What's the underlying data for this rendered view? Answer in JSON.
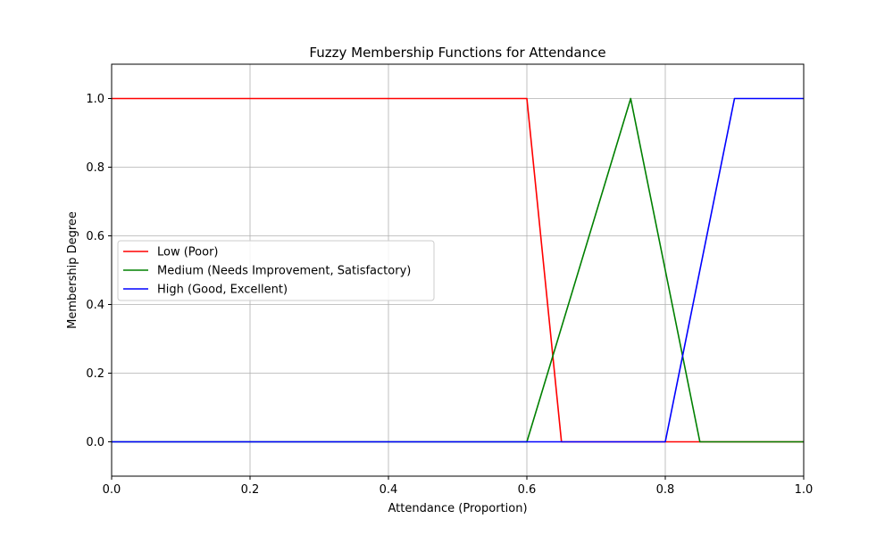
{
  "chart_data": {
    "type": "line",
    "title": "Fuzzy Membership Functions for Attendance",
    "xlabel": "Attendance (Proportion)",
    "ylabel": "Membership Degree",
    "xlim": [
      0.0,
      1.0
    ],
    "ylim": [
      -0.1,
      1.1
    ],
    "x_ticks": [
      "0.0",
      "0.2",
      "0.4",
      "0.6",
      "0.8",
      "1.0"
    ],
    "y_ticks": [
      "0.0",
      "0.2",
      "0.4",
      "0.6",
      "0.8",
      "1.0"
    ],
    "grid": true,
    "legend_position": "center-left",
    "series": [
      {
        "name": "Low (Poor)",
        "color": "#ff0000",
        "points": [
          [
            0.0,
            1.0
          ],
          [
            0.6,
            1.0
          ],
          [
            0.65,
            0.0
          ],
          [
            1.0,
            0.0
          ]
        ]
      },
      {
        "name": "Medium (Needs Improvement, Satisfactory)",
        "color": "#008000",
        "points": [
          [
            0.0,
            0.0
          ],
          [
            0.6,
            0.0
          ],
          [
            0.75,
            1.0
          ],
          [
            0.85,
            0.0
          ],
          [
            1.0,
            0.0
          ]
        ]
      },
      {
        "name": "High (Good, Excellent)",
        "color": "#0000ff",
        "points": [
          [
            0.0,
            0.0
          ],
          [
            0.8,
            0.0
          ],
          [
            0.9,
            1.0
          ],
          [
            1.0,
            1.0
          ]
        ]
      }
    ]
  }
}
